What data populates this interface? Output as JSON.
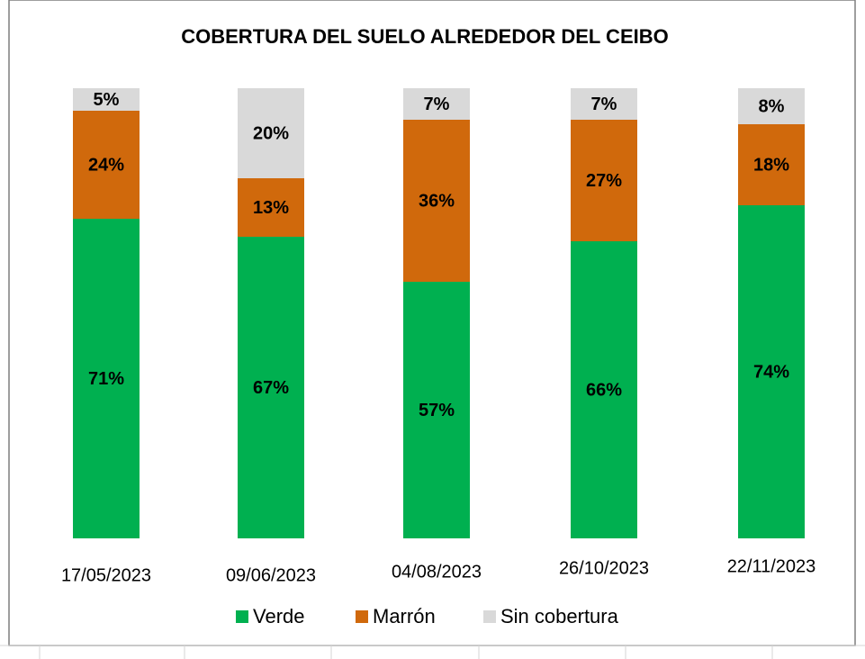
{
  "chart_data": {
    "type": "stacked_bar",
    "title": "COBERTURA DEL SUELO ALREDEDOR DEL CEIBO",
    "categories": [
      "17/05/2023",
      "09/06/2023",
      "04/08/2023",
      "26/10/2023",
      "22/11/2023"
    ],
    "series": [
      {
        "name": "Verde",
        "color": "#00b050",
        "values": [
          71,
          67,
          57,
          66,
          74
        ],
        "value_labels": [
          "71%",
          "67%",
          "57%",
          "66%",
          "74%"
        ]
      },
      {
        "name": "Marrón",
        "color": "#d0690c",
        "values": [
          24,
          13,
          36,
          27,
          18
        ],
        "value_labels": [
          "24%",
          "13%",
          "36%",
          "27%",
          "18%"
        ]
      },
      {
        "name": "Sin cobertura",
        "color": "#d9d9d9",
        "values": [
          5,
          20,
          7,
          7,
          8
        ],
        "value_labels": [
          "5%",
          "20%",
          "7%",
          "7%",
          "8%"
        ]
      }
    ],
    "legend": "bottom"
  }
}
